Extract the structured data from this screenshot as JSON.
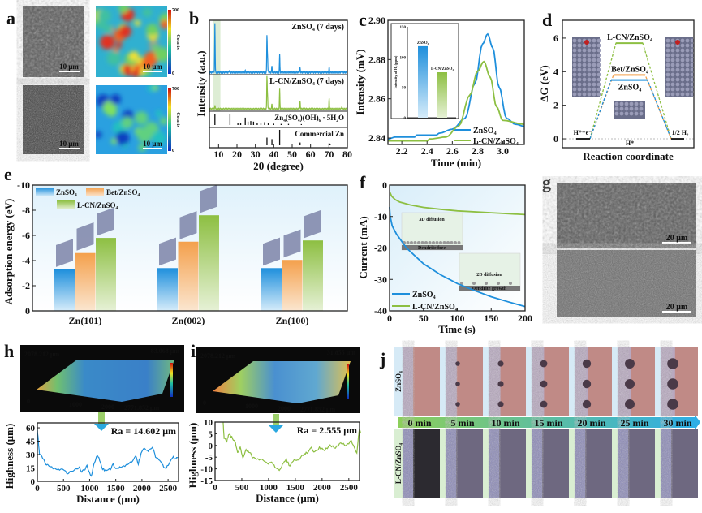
{
  "panel_labels": [
    "a",
    "b",
    "c",
    "d",
    "e",
    "f",
    "g",
    "h",
    "i",
    "j"
  ],
  "panel_a": {
    "scale_bars": [
      "10 μm",
      "10 μm",
      "10 μm",
      "10 μm"
    ],
    "colorbar_max": "700",
    "colorbar_min": "0",
    "colorbar_label": "Counts"
  },
  "panel_g": {
    "scale_bars": [
      "20 μm",
      "20 μm"
    ]
  },
  "panel_h_3d": {
    "y_extent": "2078.212 μm",
    "z_max": "83.068 μm",
    "x_extent": "2771.852 μm",
    "ticks": [
      "0",
      "1000",
      "2000"
    ]
  },
  "panel_i_3d": {
    "y_extent": "2078.212 μm",
    "z_max": "31.855 μm",
    "x_extent": "2771.852 μm",
    "ticks": [
      "0",
      "1000",
      "2000"
    ]
  },
  "panel_j": {
    "rows": [
      "ZnSO₄",
      "L-CN/ZnSO₄"
    ],
    "times": [
      "0 min",
      "5 min",
      "10 min",
      "15 min",
      "20 min",
      "25 min",
      "30 min"
    ]
  },
  "colors": {
    "blue": "#1e8fdc",
    "green": "#8dbf42",
    "orange": "#f4a04c"
  },
  "chart_data": [
    {
      "type": "line",
      "panel": "b",
      "xlabel": "2θ (degree)",
      "ylabel": "Intensity (a.u.)",
      "xlim": [
        5,
        80
      ],
      "xticks": [
        "10",
        "20",
        "30",
        "40",
        "50",
        "60",
        "70",
        "80"
      ],
      "series": [
        {
          "name": "ZnSO₄ (7 days)",
          "color": "#1e8fdc",
          "peaks": [
            [
              8,
              1.0
            ],
            [
              16,
              0.05
            ],
            [
              24.5,
              0.02
            ],
            [
              36.3,
              0.72
            ],
            [
              36.6,
              0.35
            ],
            [
              39,
              0.12
            ],
            [
              43.2,
              0.36
            ],
            [
              54.3,
              0.1
            ],
            [
              70.1,
              0.1
            ],
            [
              77,
              0.03
            ]
          ]
        },
        {
          "name": "L-CN/ZnSO₄ (7 days)",
          "color": "#8dbf42",
          "peaks": [
            [
              8,
              0.12
            ],
            [
              16,
              0.03
            ],
            [
              36.3,
              1.0
            ],
            [
              36.6,
              0.45
            ],
            [
              39,
              0.15
            ],
            [
              43.2,
              0.62
            ],
            [
              54.3,
              0.25
            ],
            [
              70.1,
              0.32
            ],
            [
              77,
              0.08
            ]
          ]
        },
        {
          "name": "Zn₄(SO₄)(OH)₆ · 5H₂O",
          "color": "#111111",
          "peaks": [
            [
              8,
              1.0
            ],
            [
              16.2,
              1.0
            ],
            [
              20.5,
              0.2
            ],
            [
              22,
              0.15
            ],
            [
              24.5,
              0.65
            ],
            [
              26,
              0.3
            ],
            [
              27.5,
              0.35
            ],
            [
              29,
              0.3
            ],
            [
              31,
              0.2
            ],
            [
              33,
              0.2
            ],
            [
              35,
              0.25
            ],
            [
              37,
              0.15
            ],
            [
              40,
              0.12
            ],
            [
              44,
              0.1
            ],
            [
              48,
              0.1
            ],
            [
              55,
              0.08
            ]
          ]
        },
        {
          "name": "Commercial Zn",
          "color": "#111111",
          "peaks": [
            [
              36.3,
              0.5
            ],
            [
              39,
              0.4
            ],
            [
              43.2,
              1.0
            ],
            [
              54.3,
              0.18
            ],
            [
              70.1,
              0.15
            ],
            [
              70.6,
              0.08
            ]
          ]
        }
      ]
    },
    {
      "type": "line",
      "panel": "c",
      "xlabel": "Time (min)",
      "ylabel": "Intensity (mV)",
      "xlim": [
        2.09,
        3.17
      ],
      "ylim": [
        2.8367,
        2.9
      ],
      "xticks": [
        "2.2",
        "2.4",
        "2.6",
        "2.8",
        "3.0"
      ],
      "yticks": [
        "2.84",
        "2.86",
        "2.88",
        "2.90"
      ],
      "legend": "bottom-right",
      "series": [
        {
          "name": "ZnSO₄",
          "color": "#1e8fdc",
          "points": [
            [
              2.09,
              2.8395
            ],
            [
              2.15,
              2.8405
            ],
            [
              2.3,
              2.8405
            ],
            [
              2.32,
              2.8415
            ],
            [
              2.47,
              2.8415
            ],
            [
              2.5,
              2.8425
            ],
            [
              2.6,
              2.8445
            ],
            [
              2.7,
              2.85
            ],
            [
              2.78,
              2.868
            ],
            [
              2.84,
              2.888
            ],
            [
              2.88,
              2.893
            ],
            [
              2.92,
              2.886
            ],
            [
              2.97,
              2.866
            ],
            [
              3.03,
              2.85
            ],
            [
              3.1,
              2.847
            ],
            [
              3.17,
              2.846
            ]
          ]
        },
        {
          "name": "L-CN/ZnSO₄",
          "color": "#8dbf42",
          "points": [
            [
              2.09,
              2.8385
            ],
            [
              2.4,
              2.8385
            ],
            [
              2.42,
              2.8395
            ],
            [
              2.55,
              2.8405
            ],
            [
              2.65,
              2.846
            ],
            [
              2.74,
              2.862
            ],
            [
              2.8,
              2.874
            ],
            [
              2.85,
              2.879
            ],
            [
              2.9,
              2.871
            ],
            [
              2.95,
              2.856
            ],
            [
              3.0,
              2.849
            ],
            [
              3.17,
              2.847
            ]
          ]
        }
      ]
    },
    {
      "type": "bar",
      "panel": "c-inset",
      "ylabel": "Intensity of H₂ (ppm)",
      "ylim": [
        0,
        150
      ],
      "yticks": [
        "0",
        "50",
        "100",
        "150"
      ],
      "categories": [
        "ZnSO₄",
        "L-CN/ZnSO₄"
      ],
      "values": [
        118,
        75
      ],
      "colors": [
        "#1e8fdc",
        "#8dbf42"
      ]
    },
    {
      "type": "line",
      "panel": "d",
      "xlabel": "Reaction coordinate",
      "ylabel": "ΔG (eV)",
      "ylim": [
        -0.53,
        7.06
      ],
      "yticks": [
        "0",
        "2",
        "4",
        "6"
      ],
      "categories": [
        "H⁺+e⁻",
        "H*",
        "1/2 H₂"
      ],
      "series": [
        {
          "name": "L-CN/ZnSO₄",
          "color": "#8dbf42",
          "values": [
            0,
            5.7,
            0
          ]
        },
        {
          "name": "Bet/ZnSO₄",
          "color": "#f4a04c",
          "values": [
            0,
            3.8,
            0
          ]
        },
        {
          "name": "ZnSO₄",
          "color": "#1e8fdc",
          "values": [
            0,
            3.5,
            0
          ]
        }
      ]
    },
    {
      "type": "bar",
      "panel": "e",
      "ylabel": "Adsorption energy (eV)",
      "ylim": [
        0,
        -10
      ],
      "yticks": [
        "0",
        "-2",
        "-4",
        "-6",
        "-8",
        "-10"
      ],
      "legend": "top-left",
      "categories": [
        "Zn(101)",
        "Zn(002)",
        "Zn(100)"
      ],
      "series": [
        {
          "name": "ZnSO₄",
          "color": "#1e8fdc",
          "values": [
            -3.3,
            -3.4,
            -3.4
          ]
        },
        {
          "name": "Bet/ZnSO₄",
          "color": "#f4a04c",
          "values": [
            -4.6,
            -5.5,
            -4.05
          ]
        },
        {
          "name": "L-CN/ZnSO₄",
          "color": "#8dbf42",
          "values": [
            -5.8,
            -7.6,
            -5.6
          ]
        }
      ]
    },
    {
      "type": "line",
      "panel": "f",
      "xlabel": "Time (s)",
      "ylabel": "Current (mA)",
      "xlim": [
        0,
        200
      ],
      "ylim": [
        -40,
        0
      ],
      "xticks": [
        "0",
        "50",
        "100",
        "150",
        "200"
      ],
      "yticks": [
        "0",
        "-10",
        "-20",
        "-30",
        "-40"
      ],
      "legend": "bottom-left",
      "annotations": [
        "3D diffusion",
        "Dendrite free",
        "2D diffusion",
        "Dendrite growth"
      ],
      "series": [
        {
          "name": "ZnSO₄",
          "color": "#1e8fdc",
          "points": [
            [
              0,
              -7
            ],
            [
              1,
              -10
            ],
            [
              4,
              -13
            ],
            [
              10,
              -15.5
            ],
            [
              25,
              -20
            ],
            [
              50,
              -25
            ],
            [
              75,
              -28.5
            ],
            [
              100,
              -31.3
            ],
            [
              125,
              -33.5
            ],
            [
              150,
              -35.5
            ],
            [
              175,
              -37.1
            ],
            [
              200,
              -38.6
            ]
          ]
        },
        {
          "name": "L-CN/ZnSO₄",
          "color": "#8dbf42",
          "points": [
            [
              0,
              -2
            ],
            [
              3,
              -3.5
            ],
            [
              8,
              -4.6
            ],
            [
              15,
              -5.4
            ],
            [
              30,
              -6.3
            ],
            [
              50,
              -7.1
            ],
            [
              75,
              -7.7
            ],
            [
              100,
              -8.2
            ],
            [
              150,
              -8.8
            ],
            [
              200,
              -9.4
            ]
          ]
        }
      ]
    },
    {
      "type": "line",
      "panel": "h",
      "xlabel": "Distance (μm)",
      "ylabel": "Highness (μm)",
      "xlim": [
        0,
        2700
      ],
      "ylim": [
        0,
        65.5
      ],
      "xticks": [
        "0",
        "500",
        "1000",
        "1500",
        "2000",
        "2500"
      ],
      "yticks": [
        "0",
        "15",
        "30",
        "45",
        "60"
      ],
      "annotation": "Ra = 14.602 μm",
      "series": [
        {
          "name": "ZnSO₄",
          "color": "#1e8fdc",
          "points": [
            [
              0,
              58
            ],
            [
              20,
              45
            ],
            [
              40,
              30
            ],
            [
              100,
              27
            ],
            [
              150,
              20
            ],
            [
              200,
              18
            ],
            [
              300,
              15
            ],
            [
              400,
              13
            ],
            [
              500,
              14
            ],
            [
              560,
              9
            ],
            [
              620,
              10
            ],
            [
              700,
              13
            ],
            [
              800,
              15
            ],
            [
              850,
              11
            ],
            [
              900,
              13
            ],
            [
              950,
              17
            ],
            [
              1000,
              10
            ],
            [
              1030,
              6
            ],
            [
              1080,
              18
            ],
            [
              1130,
              28
            ],
            [
              1180,
              27
            ],
            [
              1230,
              15
            ],
            [
              1300,
              12
            ],
            [
              1400,
              14
            ],
            [
              1450,
              19
            ],
            [
              1500,
              14
            ],
            [
              1600,
              16
            ],
            [
              1700,
              18
            ],
            [
              1800,
              22
            ],
            [
              1880,
              28
            ],
            [
              1930,
              20
            ],
            [
              2000,
              34
            ],
            [
              2060,
              37
            ],
            [
              2120,
              33
            ],
            [
              2200,
              38
            ],
            [
              2260,
              28
            ],
            [
              2320,
              24
            ],
            [
              2400,
              18
            ],
            [
              2450,
              14
            ],
            [
              2520,
              20
            ],
            [
              2600,
              27
            ],
            [
              2650,
              25
            ],
            [
              2700,
              28
            ]
          ]
        }
      ]
    },
    {
      "type": "line",
      "panel": "i",
      "xlabel": "Distance (μm)",
      "ylabel": "Highness (μm)",
      "xlim": [
        0,
        2700
      ],
      "ylim": [
        -15,
        10
      ],
      "xticks": [
        "0",
        "500",
        "1000",
        "1500",
        "2000",
        "2500"
      ],
      "yticks": [
        "10",
        "5",
        "0",
        "-5",
        "-10",
        "-15"
      ],
      "annotation": "Ra = 2.555 μm",
      "series": [
        {
          "name": "L-CN/ZnSO₄",
          "color": "#8dbf42",
          "points": [
            [
              150,
              10
            ],
            [
              170,
              3
            ],
            [
              220,
              2
            ],
            [
              260,
              5
            ],
            [
              330,
              3
            ],
            [
              380,
              1
            ],
            [
              420,
              -3
            ],
            [
              470,
              -1
            ],
            [
              520,
              -5
            ],
            [
              580,
              -2
            ],
            [
              650,
              -3
            ],
            [
              700,
              -5
            ],
            [
              800,
              -6
            ],
            [
              900,
              -6
            ],
            [
              980,
              -8
            ],
            [
              1050,
              -7
            ],
            [
              1120,
              -9
            ],
            [
              1200,
              -11
            ],
            [
              1260,
              -8
            ],
            [
              1330,
              -6
            ],
            [
              1400,
              -9
            ],
            [
              1480,
              -6
            ],
            [
              1560,
              -6
            ],
            [
              1650,
              -4
            ],
            [
              1720,
              -3
            ],
            [
              1800,
              -1
            ],
            [
              1860,
              -3
            ],
            [
              1950,
              -1
            ],
            [
              2050,
              -2
            ],
            [
              2150,
              0
            ],
            [
              2250,
              -1
            ],
            [
              2350,
              1
            ],
            [
              2450,
              0
            ],
            [
              2550,
              2
            ],
            [
              2600,
              -1
            ],
            [
              2650,
              -3
            ],
            [
              2680,
              4
            ],
            [
              2700,
              7
            ],
            [
              2730,
              4
            ]
          ]
        }
      ]
    }
  ]
}
